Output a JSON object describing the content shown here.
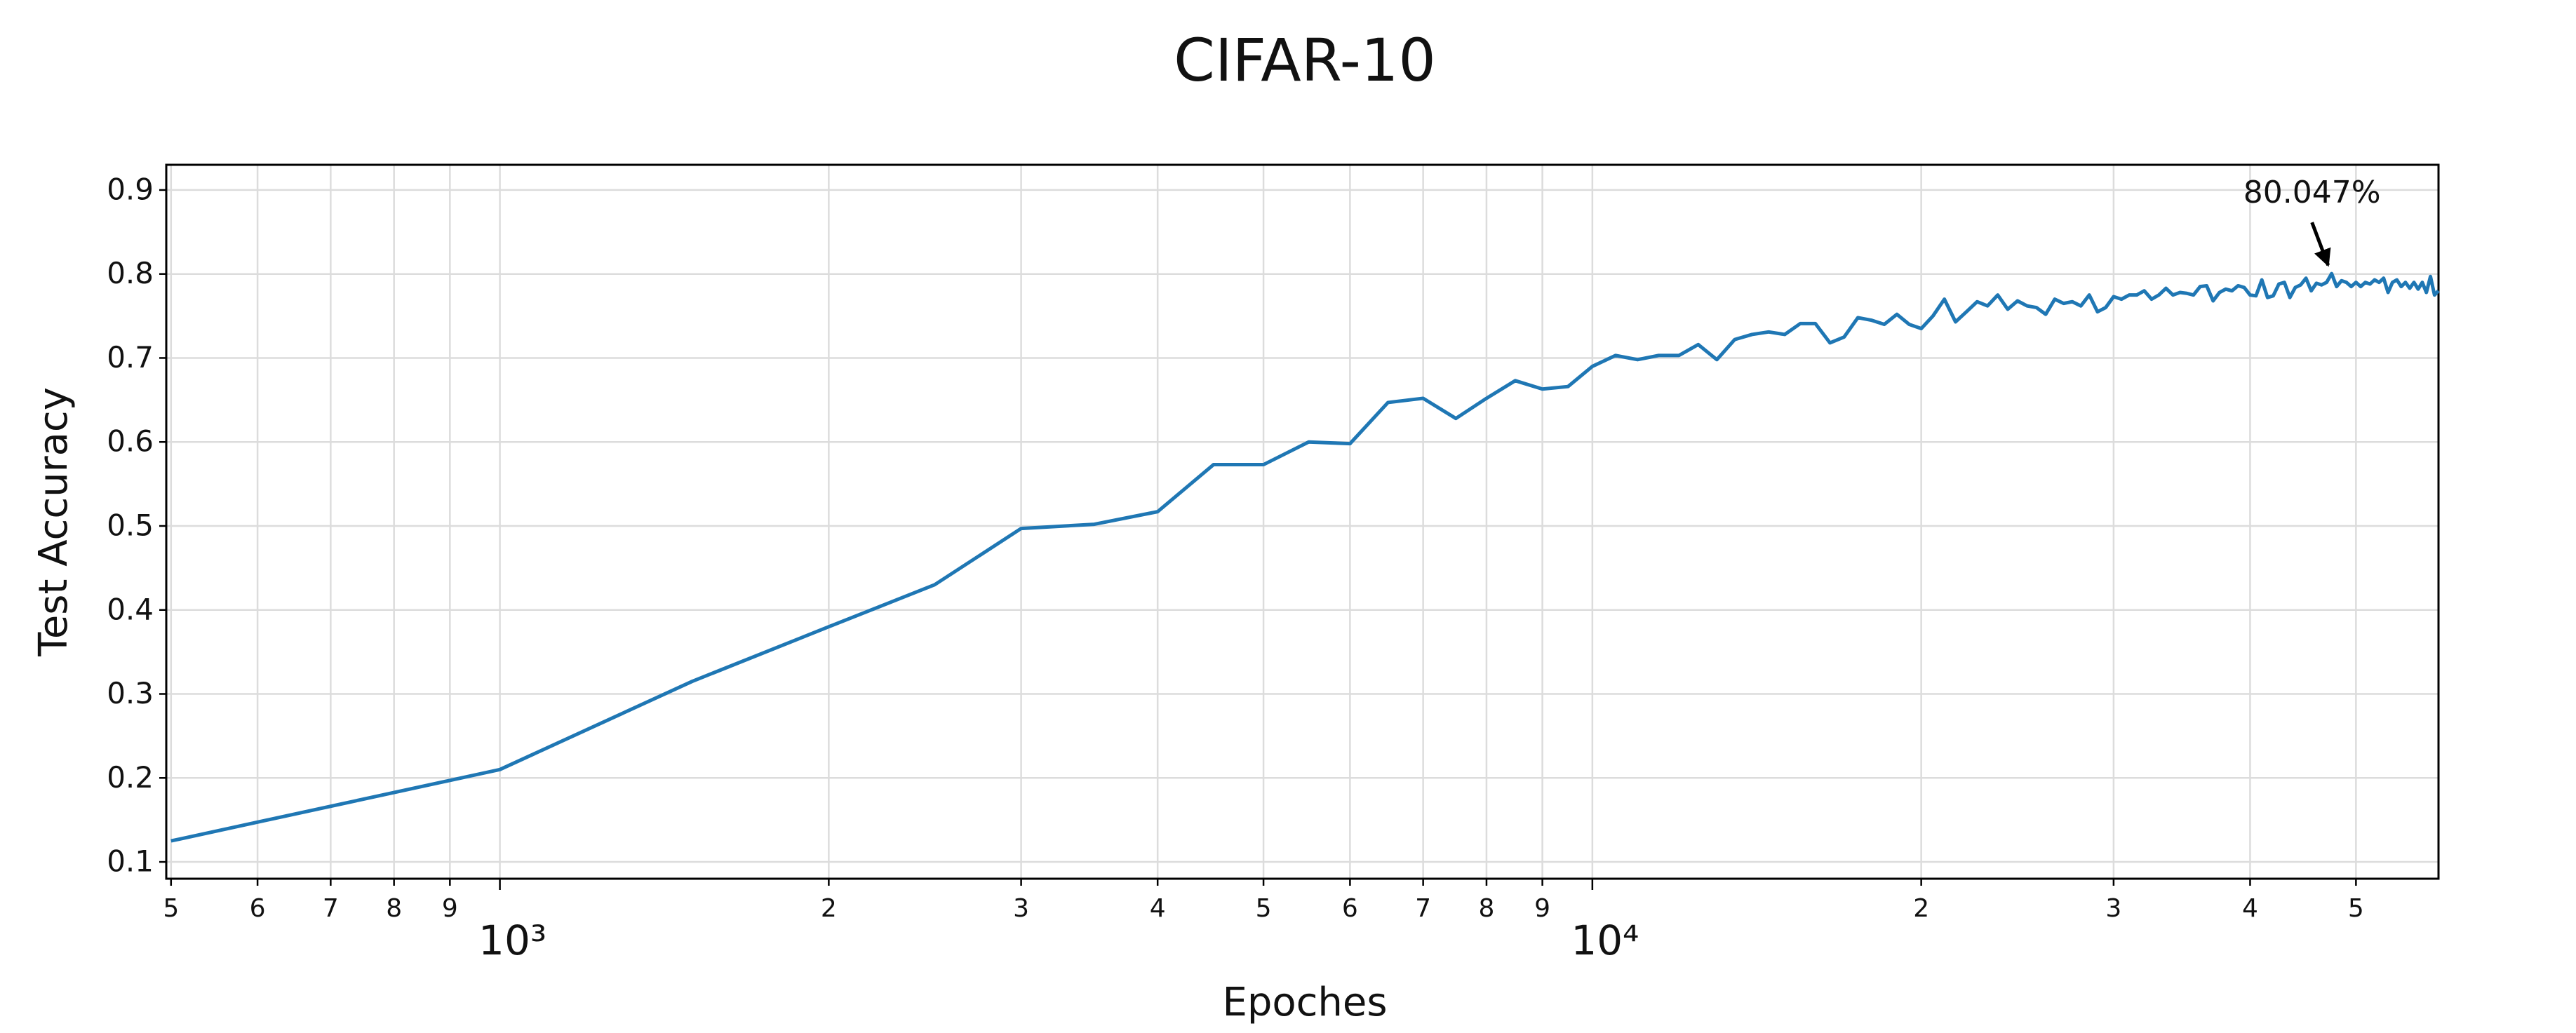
{
  "chart_data": {
    "type": "line",
    "title": "CIFAR-10",
    "x_label": "Epoches",
    "y_label": "Test Accuracy",
    "x_scale": "log",
    "grid": true,
    "xlim": [
      495,
      59500
    ],
    "ylim": [
      0.08,
      0.93
    ],
    "xticks": [
      {
        "value": 500,
        "label": "5"
      },
      {
        "value": 600,
        "label": "6"
      },
      {
        "value": 700,
        "label": "7"
      },
      {
        "value": 800,
        "label": "8"
      },
      {
        "value": 900,
        "label": "9"
      },
      {
        "value": 1000,
        "label": "10³"
      },
      {
        "value": 2000,
        "label": "2"
      },
      {
        "value": 3000,
        "label": "3"
      },
      {
        "value": 4000,
        "label": "4"
      },
      {
        "value": 5000,
        "label": "5"
      },
      {
        "value": 6000,
        "label": "6"
      },
      {
        "value": 7000,
        "label": "7"
      },
      {
        "value": 8000,
        "label": "8"
      },
      {
        "value": 9000,
        "label": "9"
      },
      {
        "value": 10000,
        "label": "10⁴"
      },
      {
        "value": 20000,
        "label": "2"
      },
      {
        "value": 30000,
        "label": "3"
      },
      {
        "value": 40000,
        "label": "4"
      },
      {
        "value": 50000,
        "label": "5"
      }
    ],
    "yticks": [
      0.1,
      0.2,
      0.3,
      0.4,
      0.5,
      0.6,
      0.7,
      0.8,
      0.9
    ],
    "annotation": {
      "text": "80.047%",
      "x": 47500,
      "y": 0.80047
    },
    "series": [
      {
        "name": "Test Accuracy",
        "color": "#1f77b4",
        "x": [
          500,
          1000,
          1500,
          2000,
          2500,
          3000,
          3500,
          4000,
          4500,
          5000,
          5500,
          6000,
          6500,
          7000,
          7500,
          8000,
          8500,
          9000,
          9500,
          10000,
          10500,
          11000,
          11500,
          12000,
          12500,
          13000,
          13500,
          14000,
          14500,
          15000,
          15500,
          16000,
          16500,
          17000,
          17500,
          18000,
          18500,
          19000,
          19500,
          20000,
          20500,
          21000,
          21500,
          22000,
          22500,
          23000,
          23500,
          24000,
          24500,
          25000,
          25500,
          26000,
          26500,
          27000,
          27500,
          28000,
          28500,
          29000,
          29500,
          30000,
          30500,
          31000,
          31500,
          32000,
          32500,
          33000,
          33500,
          34000,
          34500,
          35000,
          35500,
          36000,
          36500,
          37000,
          37500,
          38000,
          38500,
          39000,
          39500,
          40000,
          40500,
          41000,
          41500,
          42000,
          42500,
          43000,
          43500,
          44000,
          44500,
          45000,
          45500,
          46000,
          46500,
          47000,
          47500,
          48000,
          48500,
          49000,
          49500,
          50000,
          50500,
          51000,
          51500,
          52000,
          52500,
          53000,
          53500,
          54000,
          54500,
          55000,
          55500,
          56000,
          56500,
          57000,
          57500,
          58000,
          58500,
          59000,
          59500
        ],
        "values": [
          0.125,
          0.21,
          0.315,
          0.38,
          0.43,
          0.497,
          0.502,
          0.517,
          0.573,
          0.573,
          0.6,
          0.598,
          0.647,
          0.652,
          0.628,
          0.652,
          0.673,
          0.663,
          0.666,
          0.69,
          0.703,
          0.698,
          0.703,
          0.703,
          0.716,
          0.698,
          0.722,
          0.728,
          0.731,
          0.728,
          0.741,
          0.741,
          0.718,
          0.725,
          0.748,
          0.745,
          0.74,
          0.752,
          0.74,
          0.735,
          0.75,
          0.77,
          0.743,
          0.755,
          0.767,
          0.762,
          0.775,
          0.758,
          0.768,
          0.762,
          0.76,
          0.752,
          0.77,
          0.765,
          0.767,
          0.762,
          0.775,
          0.755,
          0.76,
          0.773,
          0.77,
          0.775,
          0.775,
          0.78,
          0.77,
          0.775,
          0.783,
          0.775,
          0.778,
          0.777,
          0.775,
          0.785,
          0.786,
          0.768,
          0.778,
          0.782,
          0.78,
          0.786,
          0.784,
          0.775,
          0.774,
          0.793,
          0.772,
          0.774,
          0.788,
          0.79,
          0.772,
          0.784,
          0.787,
          0.795,
          0.78,
          0.789,
          0.787,
          0.79,
          0.80047,
          0.785,
          0.792,
          0.79,
          0.785,
          0.79,
          0.785,
          0.79,
          0.788,
          0.793,
          0.79,
          0.795,
          0.778,
          0.79,
          0.793,
          0.785,
          0.79,
          0.783,
          0.79,
          0.782,
          0.79,
          0.778,
          0.797,
          0.775,
          0.78
        ]
      }
    ]
  }
}
